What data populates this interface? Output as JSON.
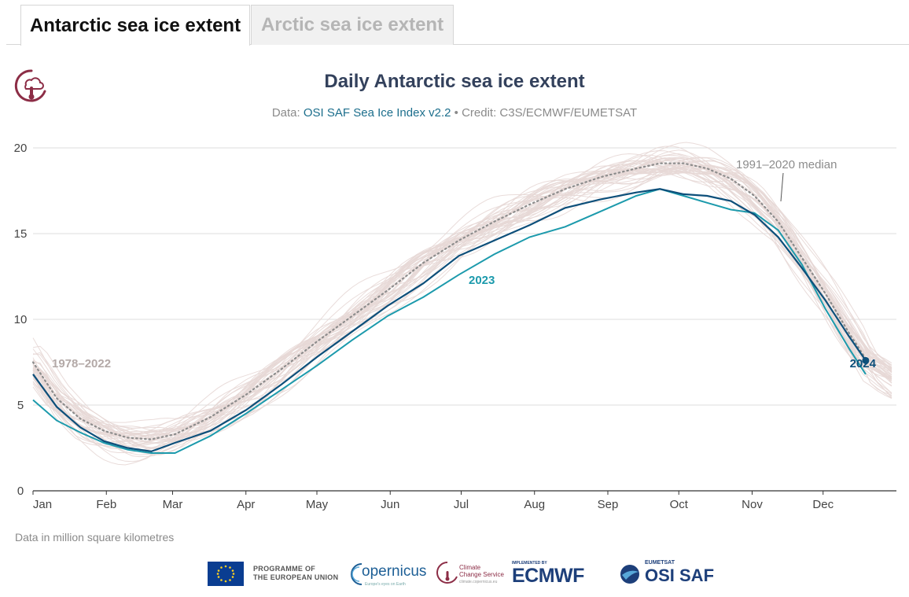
{
  "tabs": [
    {
      "label": "Antarctic sea ice extent",
      "active": true
    },
    {
      "label": "Arctic sea ice extent",
      "active": false
    }
  ],
  "header": {
    "title": "Daily Antarctic sea ice extent",
    "subtitle_prefix": "Data: ",
    "subtitle_link": "OSI SAF Sea Ice Index v2.2",
    "subtitle_suffix": " • Credit: C3S/ECMWF/EUMETSAT"
  },
  "footnote": "Data in million square kilometres",
  "partners": {
    "eu_line1": "PROGRAMME OF",
    "eu_line2": "THE EUROPEAN UNION",
    "copernicus": "opernicus",
    "copernicus_tag": "Europe's eyes on Earth",
    "c3s_line1": "Climate",
    "c3s_line2": "Change Service",
    "c3s_tag": "climate.copernicus.eu",
    "ecmwf_small": "IMPLEMENTED BY",
    "ecmwf": "ECMWF",
    "osi_small": "EUMETSAT",
    "osi": "OSI SAF"
  },
  "colors": {
    "background_years": "#e7d8d6",
    "series_2024": "#0d4f7a",
    "series_2023": "#1c9aac",
    "median": "#8c8c8c",
    "brand": "#8c2d46"
  },
  "chart_data": {
    "type": "line",
    "title": "Daily Antarctic sea ice extent",
    "x_ticks": [
      "Jan",
      "Feb",
      "Mar",
      "Apr",
      "May",
      "Jun",
      "Jul",
      "Aug",
      "Sep",
      "Oct",
      "Nov",
      "Dec"
    ],
    "y_ticks": [
      0,
      5,
      10,
      15,
      20
    ],
    "ylim": [
      0,
      20
    ],
    "grid": true,
    "annotations": {
      "range_label": "1978–2022",
      "median_label": "1991–2020 median",
      "label_2023": "2023",
      "label_2024": "2024"
    },
    "series": [
      {
        "name": "1991–2020 median",
        "style": "dotted",
        "points": [
          [
            0,
            7.5
          ],
          [
            10,
            5.4
          ],
          [
            20,
            4.2
          ],
          [
            30,
            3.5
          ],
          [
            40,
            3.1
          ],
          [
            50,
            3.0
          ],
          [
            60,
            3.3
          ],
          [
            75,
            4.3
          ],
          [
            90,
            5.6
          ],
          [
            105,
            7.1
          ],
          [
            120,
            8.7
          ],
          [
            135,
            10.2
          ],
          [
            150,
            11.7
          ],
          [
            165,
            13.3
          ],
          [
            180,
            14.6
          ],
          [
            195,
            15.7
          ],
          [
            210,
            16.7
          ],
          [
            225,
            17.6
          ],
          [
            240,
            18.3
          ],
          [
            255,
            18.8
          ],
          [
            265,
            19.1
          ],
          [
            275,
            19.1
          ],
          [
            285,
            18.8
          ],
          [
            295,
            18.2
          ],
          [
            305,
            17.2
          ],
          [
            315,
            15.7
          ],
          [
            325,
            13.6
          ],
          [
            335,
            11.5
          ],
          [
            345,
            9.2
          ],
          [
            352,
            7.7
          ]
        ]
      },
      {
        "name": "2023",
        "points": [
          [
            0,
            5.3
          ],
          [
            10,
            4.1
          ],
          [
            20,
            3.4
          ],
          [
            30,
            2.8
          ],
          [
            40,
            2.4
          ],
          [
            50,
            2.2
          ],
          [
            60,
            2.2
          ],
          [
            75,
            3.2
          ],
          [
            90,
            4.5
          ],
          [
            105,
            5.9
          ],
          [
            120,
            7.3
          ],
          [
            135,
            8.8
          ],
          [
            150,
            10.2
          ],
          [
            165,
            11.3
          ],
          [
            180,
            12.6
          ],
          [
            195,
            13.8
          ],
          [
            210,
            14.8
          ],
          [
            225,
            15.4
          ],
          [
            240,
            16.3
          ],
          [
            255,
            17.2
          ],
          [
            265,
            17.6
          ],
          [
            275,
            17.2
          ],
          [
            285,
            16.8
          ],
          [
            295,
            16.4
          ],
          [
            305,
            16.2
          ],
          [
            315,
            15.2
          ],
          [
            325,
            13.2
          ],
          [
            335,
            10.6
          ],
          [
            345,
            8.3
          ],
          [
            352,
            6.8
          ]
        ]
      },
      {
        "name": "2024",
        "points": [
          [
            0,
            6.8
          ],
          [
            10,
            4.9
          ],
          [
            20,
            3.7
          ],
          [
            30,
            2.9
          ],
          [
            40,
            2.5
          ],
          [
            50,
            2.3
          ],
          [
            60,
            2.8
          ],
          [
            75,
            3.5
          ],
          [
            90,
            4.7
          ],
          [
            105,
            6.2
          ],
          [
            120,
            7.8
          ],
          [
            135,
            9.3
          ],
          [
            150,
            10.8
          ],
          [
            165,
            12.1
          ],
          [
            180,
            13.7
          ],
          [
            195,
            14.6
          ],
          [
            210,
            15.5
          ],
          [
            225,
            16.5
          ],
          [
            240,
            17.0
          ],
          [
            255,
            17.4
          ],
          [
            265,
            17.6
          ],
          [
            275,
            17.3
          ],
          [
            285,
            17.2
          ],
          [
            295,
            16.9
          ],
          [
            305,
            16.1
          ],
          [
            315,
            14.8
          ],
          [
            325,
            13.0
          ],
          [
            335,
            11.1
          ],
          [
            345,
            9.0
          ],
          [
            352,
            7.6
          ]
        ]
      }
    ]
  }
}
